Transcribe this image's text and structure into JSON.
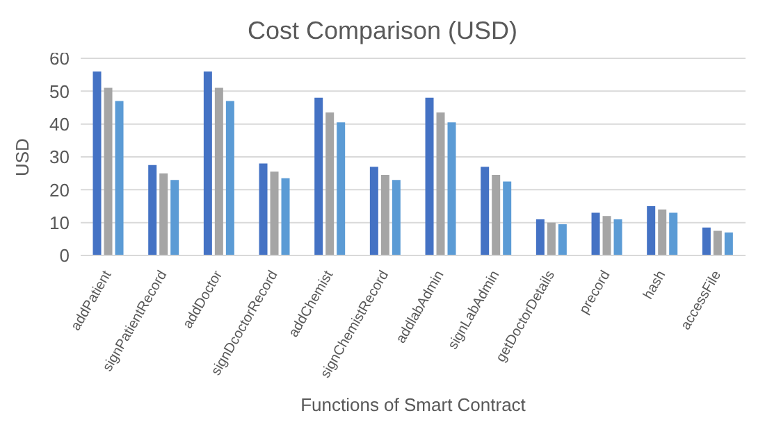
{
  "chart_data": {
    "type": "bar",
    "title": "Cost Comparison (USD)",
    "xlabel": "Functions of Smart Contract",
    "ylabel": "USD",
    "categories": [
      "addPatient",
      "signPatientRecord",
      "addDoctor",
      "signDcoctorRecord",
      "addChemist",
      "signChemistRecord",
      "addlabAdmin",
      "signLabAdmin",
      "getDoctorDetails",
      "precord",
      "hash",
      "accessFile"
    ],
    "series": [
      {
        "color": "#4472c4",
        "values": [
          56,
          27.5,
          56,
          28,
          48,
          27,
          48,
          27,
          11,
          13,
          15,
          8.5
        ]
      },
      {
        "color": "#a5a5a5",
        "values": [
          51,
          25,
          51,
          25.5,
          43.5,
          24.5,
          43.5,
          24.5,
          10,
          12,
          14,
          7.5
        ]
      },
      {
        "color": "#5b9bd5",
        "values": [
          47,
          23,
          47,
          23.5,
          40.5,
          23,
          40.5,
          22.5,
          9.5,
          11,
          13,
          7
        ]
      }
    ],
    "ylim": [
      0,
      60
    ],
    "yticks": [
      0,
      10,
      20,
      30,
      40,
      50,
      60
    ],
    "grid": "y",
    "legend": false
  }
}
